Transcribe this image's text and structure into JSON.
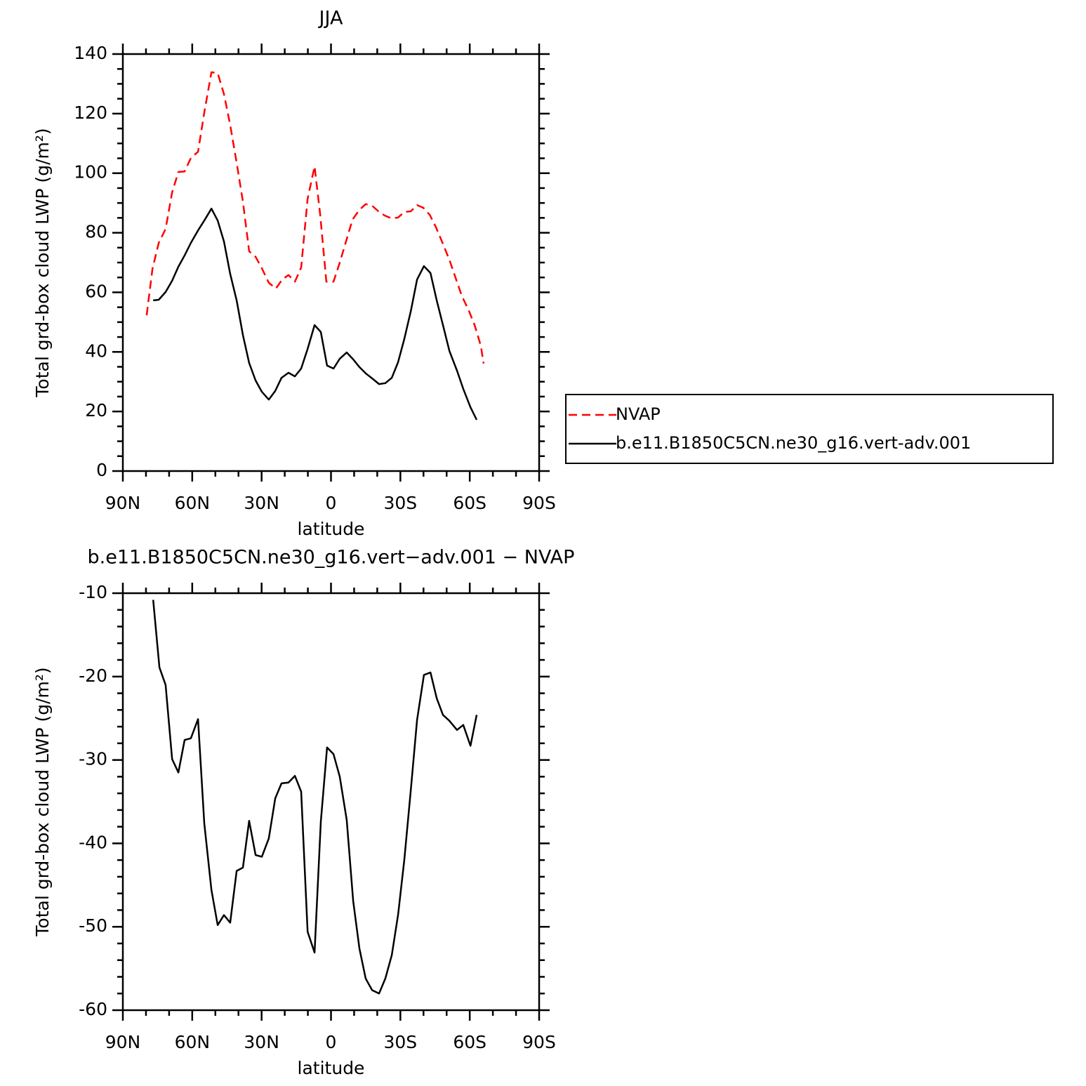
{
  "chart_data": [
    {
      "type": "line",
      "title": "JJA",
      "xlabel": "latitude",
      "ylabel": "Total grd-box cloud LWP (g/m²)",
      "xlim": [
        90,
        -90
      ],
      "xticks": [
        {
          "value": 90,
          "label": "90N"
        },
        {
          "value": 60,
          "label": "60N"
        },
        {
          "value": 30,
          "label": "30N"
        },
        0,
        {
          "value": -30,
          "label": "30S"
        },
        {
          "value": -60,
          "label": "60S"
        },
        {
          "value": -90,
          "label": "90S"
        }
      ],
      "ylim": [
        0,
        140
      ],
      "yticks": [
        0,
        20,
        40,
        60,
        80,
        100,
        120,
        140
      ],
      "legend": "right",
      "series": [
        {
          "name": "NVAP",
          "color": "#ff0000",
          "linestyle": "dashed",
          "x": [
            79.7,
            77.2,
            74.5,
            71.5,
            68.7,
            66.0,
            63.3,
            60.6,
            57.5,
            54.8,
            51.7,
            49.0,
            46.3,
            43.6,
            40.8,
            38.1,
            35.4,
            32.6,
            29.9,
            26.9,
            23.8,
            21.1,
            18.4,
            15.6,
            12.9,
            10.1,
            7.1,
            4.7,
            2.0,
            -1.1,
            -3.8,
            -6.5,
            -9.3,
            -12.3,
            -15.0,
            -17.8,
            -20.5,
            -23.2,
            -26.3,
            -29.0,
            -31.7,
            -34.5,
            -37.2,
            -39.9,
            -42.7,
            -45.4,
            -48.1,
            -51.2,
            -53.9,
            -56.6,
            -59.4,
            -62.1,
            -64.8,
            -66.0
          ],
          "values": [
            52.3,
            67.9,
            76.6,
            81.3,
            93.6,
            100.4,
            100.6,
            105.1,
            107.2,
            120.4,
            133.9,
            133.6,
            126.6,
            116.2,
            103.5,
            90.5,
            73.8,
            71.9,
            68.1,
            63.2,
            61.3,
            64.3,
            65.8,
            63.6,
            68.3,
            91.4,
            102.3,
            86.3,
            63.6,
            63.6,
            70.0,
            77.1,
            84.4,
            87.7,
            89.6,
            89.1,
            87.2,
            85.8,
            84.8,
            85.1,
            87.0,
            87.2,
            89.3,
            88.4,
            86.0,
            81.8,
            76.8,
            70.9,
            64.8,
            58.7,
            54.2,
            49.0,
            42.0,
            36.1
          ]
        },
        {
          "name": "b.e11.B1850C5CN.ne30_g16.vert-adv.001",
          "color": "#000000",
          "linestyle": "solid",
          "x": [
            76.9,
            74.5,
            71.5,
            68.7,
            66.0,
            63.3,
            60.6,
            57.5,
            54.8,
            51.7,
            49.0,
            46.3,
            43.6,
            40.8,
            38.1,
            35.4,
            32.6,
            29.9,
            26.9,
            24.1,
            21.4,
            18.4,
            15.6,
            12.9,
            10.1,
            7.1,
            4.4,
            1.7,
            -1.1,
            -3.8,
            -6.8,
            -9.6,
            -12.3,
            -15.0,
            -17.8,
            -20.8,
            -23.5,
            -26.3,
            -29.0,
            -31.7,
            -34.5,
            -37.2,
            -40.2,
            -43.0,
            -45.7,
            -48.4,
            -51.2,
            -54.5,
            -57.2,
            -60.3,
            -63.0
          ],
          "values": [
            57.3,
            57.5,
            60.1,
            63.9,
            68.6,
            72.4,
            76.6,
            80.8,
            84.1,
            88.1,
            84.1,
            77.1,
            66.2,
            57.3,
            45.7,
            36.3,
            30.4,
            26.6,
            24.0,
            26.9,
            31.3,
            33.0,
            31.8,
            34.4,
            41.0,
            49.0,
            46.7,
            35.4,
            34.4,
            37.7,
            39.8,
            37.5,
            34.9,
            32.8,
            31.1,
            29.2,
            29.5,
            31.3,
            36.5,
            44.3,
            53.7,
            64.3,
            68.8,
            66.5,
            57.3,
            49.0,
            40.3,
            33.7,
            27.6,
            21.4,
            17.2
          ]
        }
      ]
    },
    {
      "type": "line",
      "title": "b.e11.B1850C5CN.ne30_g16.vert−adv.001  − NVAP",
      "xlabel": "latitude",
      "ylabel": "Total grd-box cloud LWP (g/m²)",
      "xlim": [
        90,
        -90
      ],
      "xticks": [
        {
          "value": 90,
          "label": "90N"
        },
        {
          "value": 60,
          "label": "60N"
        },
        {
          "value": 30,
          "label": "30N"
        },
        0,
        {
          "value": -30,
          "label": "30S"
        },
        {
          "value": -60,
          "label": "60S"
        },
        {
          "value": -90,
          "label": "90S"
        }
      ],
      "ylim": [
        -60,
        -10
      ],
      "yticks": [
        -10,
        -20,
        -30,
        -40,
        -50,
        -60
      ],
      "series": [
        {
          "color": "#000000",
          "linestyle": "solid",
          "x": [
            76.9,
            74.2,
            71.5,
            68.7,
            66.0,
            63.3,
            60.6,
            57.5,
            54.8,
            51.7,
            49.0,
            46.3,
            43.6,
            40.8,
            38.1,
            35.4,
            32.6,
            29.9,
            26.9,
            24.1,
            21.4,
            18.4,
            15.6,
            12.9,
            10.1,
            7.1,
            4.4,
            1.7,
            -1.1,
            -3.8,
            -6.8,
            -9.6,
            -12.3,
            -15.0,
            -17.8,
            -20.8,
            -23.5,
            -26.3,
            -29.0,
            -31.7,
            -34.5,
            -37.2,
            -40.2,
            -43.0,
            -45.7,
            -48.4,
            -51.2,
            -54.5,
            -57.2,
            -60.3,
            -63.0
          ],
          "values": [
            -10.8,
            -18.9,
            -21.0,
            -29.9,
            -31.5,
            -27.6,
            -27.4,
            -25.1,
            -37.6,
            -45.6,
            -49.8,
            -48.6,
            -49.5,
            -43.3,
            -42.9,
            -37.3,
            -41.4,
            -41.6,
            -39.4,
            -34.6,
            -32.8,
            -32.7,
            -31.9,
            -33.8,
            -50.6,
            -53.1,
            -37.4,
            -28.5,
            -29.3,
            -32.0,
            -37.2,
            -46.9,
            -52.6,
            -56.2,
            -57.6,
            -58.0,
            -56.2,
            -53.4,
            -48.6,
            -42.0,
            -33.6,
            -25.2,
            -19.8,
            -19.5,
            -22.6,
            -24.6,
            -25.3,
            -26.4,
            -25.8,
            -28.3,
            -24.6
          ]
        }
      ]
    }
  ]
}
